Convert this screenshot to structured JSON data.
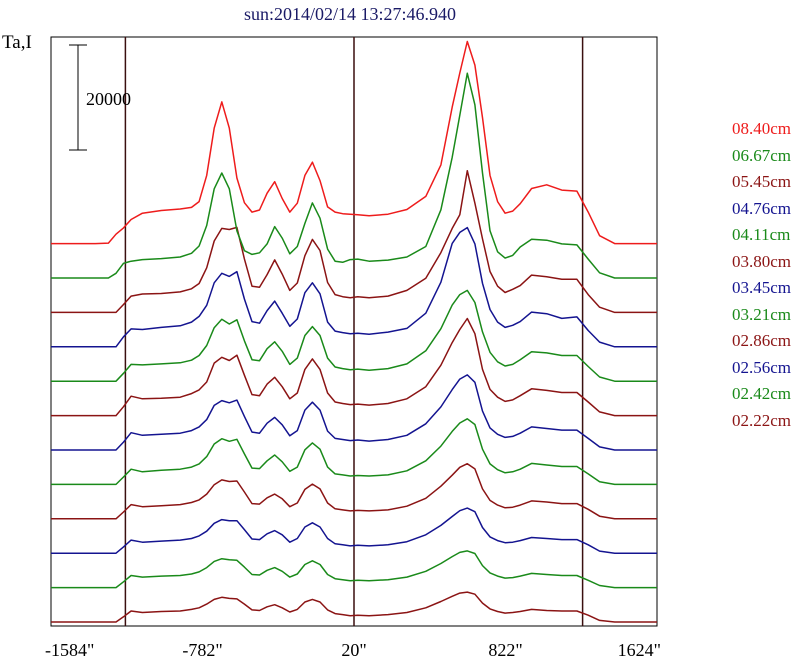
{
  "chart_data": {
    "type": "line",
    "title": "sun:2014/02/14 13:27:46.940",
    "ylabel": "Ta,I",
    "scale_bar_label": "20000",
    "scale_bar_value": 20000,
    "x_ticks": [
      "-1584\"",
      "-782\"",
      "20\"",
      "822\"",
      "1624\""
    ],
    "x_tick_values": [
      -1584,
      -782,
      20,
      822,
      1624
    ],
    "xlim": [
      -1584,
      1624
    ],
    "vertical_markers": [
      -1190,
      20,
      1230
    ],
    "x": [
      -1584,
      -1450,
      -1350,
      -1280,
      -1240,
      -1200,
      -1160,
      -1100,
      -1000,
      -900,
      -840,
      -800,
      -760,
      -720,
      -680,
      -640,
      -600,
      -560,
      -520,
      -480,
      -440,
      -400,
      -360,
      -320,
      -280,
      -240,
      -200,
      -160,
      -120,
      -80,
      -40,
      0,
      40,
      100,
      200,
      300,
      400,
      480,
      540,
      580,
      620,
      660,
      700,
      740,
      780,
      820,
      860,
      900,
      960,
      1040,
      1120,
      1200,
      1260,
      1320,
      1400,
      1624
    ],
    "series": [
      {
        "name": "08.40cm",
        "color": "#ee1c1c",
        "values": [
          0,
          0,
          0,
          100,
          1800,
          3000,
          4600,
          5800,
          6300,
          6600,
          6900,
          8000,
          13000,
          22000,
          27000,
          22000,
          12500,
          7800,
          6000,
          6400,
          9600,
          11800,
          8600,
          6000,
          7700,
          13000,
          15500,
          12000,
          7000,
          6000,
          5700,
          5600,
          5500,
          5300,
          5600,
          6500,
          9000,
          15000,
          26000,
          32500,
          38500,
          34000,
          24000,
          13000,
          8000,
          5800,
          6200,
          7600,
          10500,
          11200,
          10200,
          10000,
          6000,
          1500,
          0,
          0
        ]
      },
      {
        "name": "06.67cm",
        "color": "#1a8a1a",
        "values": [
          0,
          0,
          0,
          0,
          900,
          2800,
          3200,
          3500,
          3700,
          4000,
          4700,
          6100,
          10000,
          17000,
          20000,
          17000,
          9000,
          5200,
          4500,
          4800,
          6500,
          9800,
          7600,
          4600,
          6000,
          10400,
          14300,
          11400,
          5500,
          3200,
          3000,
          3500,
          3600,
          3200,
          3400,
          4000,
          6000,
          13000,
          23000,
          31000,
          39000,
          33000,
          20000,
          9000,
          5000,
          3800,
          4300,
          5900,
          7400,
          7200,
          6500,
          6300,
          3600,
          1000,
          0,
          0
        ]
      },
      {
        "name": "05.45cm",
        "color": "#8b1414",
        "values": [
          0,
          0,
          0,
          0,
          0,
          1500,
          3100,
          3500,
          3600,
          3900,
          4500,
          5500,
          8500,
          13600,
          16000,
          15800,
          16200,
          10200,
          5000,
          4800,
          7200,
          10000,
          7300,
          4200,
          5600,
          10800,
          13900,
          11800,
          5700,
          3400,
          3000,
          2800,
          3000,
          2800,
          3100,
          4200,
          6500,
          11400,
          16000,
          18600,
          27000,
          20800,
          14000,
          7800,
          5000,
          3800,
          4400,
          5100,
          7100,
          6800,
          6300,
          6300,
          3400,
          1000,
          0,
          0
        ]
      },
      {
        "name": "04.76cm",
        "color": "#141490",
        "values": [
          0,
          0,
          0,
          0,
          0,
          1900,
          3400,
          3300,
          3700,
          4000,
          4700,
          5800,
          7900,
          12200,
          14000,
          13400,
          14300,
          9100,
          4800,
          4500,
          6900,
          8700,
          6400,
          3900,
          5300,
          10300,
          12200,
          10100,
          4700,
          3000,
          2700,
          2500,
          2600,
          2400,
          2800,
          3500,
          6400,
          12300,
          19700,
          21800,
          22700,
          19600,
          12100,
          7100,
          4700,
          3700,
          4100,
          4800,
          6600,
          6300,
          5400,
          5700,
          3100,
          900,
          0,
          0
        ]
      },
      {
        "name": "04.11cm",
        "color": "#1a8a1a",
        "values": [
          0,
          0,
          0,
          0,
          0,
          1500,
          3200,
          3100,
          3300,
          3500,
          4000,
          4900,
          6800,
          10200,
          11800,
          10900,
          11700,
          7700,
          4100,
          3900,
          6200,
          7500,
          5700,
          3200,
          4400,
          8700,
          10400,
          8700,
          4400,
          2700,
          2400,
          2200,
          2300,
          2100,
          2400,
          3300,
          5800,
          10000,
          14500,
          16500,
          17300,
          15000,
          9400,
          5500,
          3700,
          2900,
          3200,
          4100,
          5600,
          5400,
          4900,
          4900,
          2800,
          800,
          0,
          0
        ]
      },
      {
        "name": "03.80cm",
        "color": "#8b1414",
        "values": [
          0,
          0,
          0,
          0,
          0,
          1700,
          3700,
          3200,
          3300,
          3500,
          4200,
          4900,
          6400,
          10000,
          11100,
          10500,
          11500,
          7700,
          4000,
          3800,
          6000,
          7300,
          5500,
          3200,
          4300,
          8800,
          10800,
          8800,
          4300,
          2600,
          2300,
          2100,
          2200,
          2000,
          2300,
          3200,
          5500,
          9600,
          13900,
          16400,
          18500,
          15600,
          8800,
          5000,
          3500,
          2700,
          3000,
          3800,
          5100,
          4800,
          4400,
          4400,
          2600,
          700,
          0,
          0
        ]
      },
      {
        "name": "03.45cm",
        "color": "#141490",
        "values": [
          0,
          0,
          0,
          0,
          0,
          1500,
          3300,
          2800,
          3000,
          3200,
          3700,
          4400,
          5800,
          8500,
          9400,
          9000,
          9500,
          6400,
          3400,
          3200,
          5100,
          6200,
          4800,
          2700,
          3700,
          7600,
          9100,
          7600,
          3600,
          2200,
          2000,
          1800,
          1900,
          1700,
          2000,
          2800,
          5000,
          8200,
          11500,
          13500,
          14300,
          12900,
          7400,
          4200,
          3000,
          2400,
          2600,
          3200,
          4400,
          4100,
          3800,
          3800,
          2200,
          600,
          0,
          0
        ]
      },
      {
        "name": "03.21cm",
        "color": "#1a8a1a",
        "values": [
          0,
          0,
          0,
          0,
          0,
          1400,
          2900,
          2400,
          2700,
          2900,
          3300,
          3900,
          5300,
          7700,
          8700,
          8200,
          8600,
          5800,
          3100,
          3000,
          4500,
          5600,
          4300,
          2500,
          3300,
          6600,
          7900,
          6700,
          3300,
          2000,
          1800,
          1600,
          1700,
          1600,
          1800,
          2600,
          4500,
          7300,
          10100,
          11700,
          12500,
          11400,
          6700,
          3900,
          2800,
          2200,
          2400,
          2900,
          4000,
          3700,
          3400,
          3400,
          2000,
          500,
          0,
          0
        ]
      },
      {
        "name": "02.86cm",
        "color": "#8b1414",
        "values": [
          0,
          0,
          0,
          0,
          0,
          1300,
          2700,
          2300,
          2500,
          2700,
          3100,
          3600,
          4700,
          6500,
          7400,
          7100,
          7200,
          5100,
          2900,
          2800,
          4000,
          4700,
          3800,
          2300,
          3000,
          5600,
          6600,
          5700,
          3000,
          1900,
          1700,
          1500,
          1600,
          1500,
          1700,
          2400,
          3900,
          6200,
          8300,
          9800,
          10500,
          9500,
          5700,
          3500,
          2600,
          2100,
          2200,
          2600,
          3400,
          3200,
          2900,
          2900,
          1800,
          500,
          0,
          0
        ]
      },
      {
        "name": "02.56cm",
        "color": "#141490",
        "values": [
          0,
          0,
          0,
          0,
          0,
          1200,
          2500,
          2100,
          2300,
          2500,
          2800,
          3300,
          4200,
          5700,
          6400,
          6200,
          6200,
          4500,
          2700,
          2600,
          3700,
          4300,
          3500,
          2100,
          2800,
          5000,
          5800,
          5000,
          2800,
          1800,
          1600,
          1400,
          1500,
          1400,
          1600,
          2200,
          3500,
          5300,
          7000,
          8100,
          8600,
          7900,
          4900,
          3100,
          2400,
          2000,
          2100,
          2400,
          3000,
          2800,
          2600,
          2600,
          1600,
          400,
          0,
          0
        ]
      },
      {
        "name": "02.42cm",
        "color": "#1a8a1a",
        "values": [
          0,
          0,
          0,
          0,
          0,
          1100,
          2300,
          2000,
          2200,
          2300,
          2600,
          3000,
          3800,
          5000,
          5500,
          5300,
          5200,
          3900,
          2500,
          2400,
          3300,
          3800,
          3100,
          2000,
          2600,
          4400,
          5100,
          4400,
          2500,
          1700,
          1500,
          1300,
          1400,
          1300,
          1500,
          2000,
          3100,
          4600,
          5900,
          6700,
          7000,
          6500,
          4200,
          2800,
          2200,
          1800,
          1900,
          2200,
          2700,
          2500,
          2300,
          2300,
          1400,
          400,
          0,
          0
        ]
      },
      {
        "name": "02.22cm",
        "color": "#8b1414",
        "values": [
          0,
          0,
          0,
          0,
          0,
          1000,
          2100,
          1800,
          2000,
          2100,
          2400,
          2700,
          3400,
          4300,
          4700,
          4500,
          4400,
          3400,
          2300,
          2200,
          2900,
          3300,
          2700,
          1900,
          2400,
          3800,
          4300,
          3800,
          2300,
          1600,
          1400,
          1200,
          1300,
          1200,
          1400,
          1800,
          2700,
          3900,
          4900,
          5500,
          5700,
          5300,
          3600,
          2500,
          2000,
          1700,
          1800,
          2000,
          2400,
          2200,
          2100,
          2100,
          1300,
          300,
          0,
          0
        ]
      }
    ],
    "grid": false,
    "legend_position": "right"
  }
}
